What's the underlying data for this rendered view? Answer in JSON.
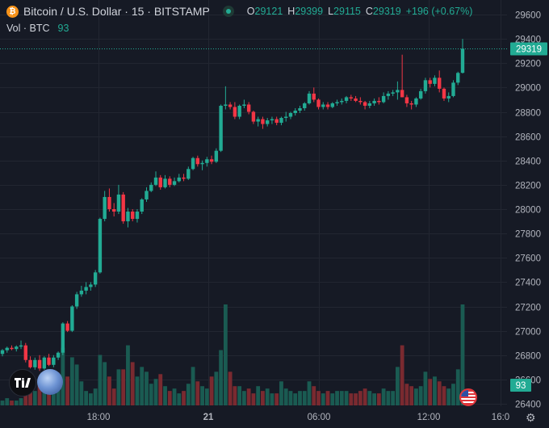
{
  "legend": {
    "symbol": "Bitcoin / U.S. Dollar · 15 · BITSTAMP",
    "btc_icon": "₿",
    "open_label": "O",
    "open": "29121",
    "high_label": "H",
    "high": "29399",
    "low_label": "L",
    "low": "29115",
    "close_label": "C",
    "close": "29319",
    "change": "+196 (+0.67%)"
  },
  "volume_legend": {
    "label": "Vol · BTC",
    "value": "93"
  },
  "icons": {
    "live": "live-indicator-icon",
    "logo": "tradingview-logo-icon",
    "moon": "full-moon-icon",
    "flag": "us-flag-event-icon",
    "settings": "gear-icon"
  },
  "colors": {
    "up": "#22ab94",
    "down": "#f23645",
    "up_volume": "#1a5b52",
    "down_volume": "#7a2a30",
    "background": "#161a25",
    "grid": "#222631",
    "last_price": "#22ab94"
  },
  "chart_data": {
    "type": "candlestick",
    "title": "Bitcoin / U.S. Dollar · 15 · BITSTAMP",
    "y_axis": {
      "ticks": [
        26400,
        26600,
        26800,
        27000,
        27200,
        27400,
        27600,
        27800,
        28000,
        28200,
        28400,
        28600,
        28800,
        29000,
        29200,
        29400,
        29600
      ],
      "range": [
        26380,
        29700
      ]
    },
    "x_axis": {
      "ticks": [
        "18:00",
        "21",
        "06:00",
        "12:00",
        "16:0"
      ]
    },
    "last_price": 29319,
    "last_volume": 93,
    "candles": [
      [
        26810,
        26850,
        26790,
        26840,
        2
      ],
      [
        26840,
        26870,
        26820,
        26860,
        3
      ],
      [
        26860,
        26880,
        26840,
        26850,
        2
      ],
      [
        26850,
        26880,
        26830,
        26870,
        2
      ],
      [
        26870,
        26920,
        26850,
        26880,
        3
      ],
      [
        26880,
        26900,
        26740,
        26760,
        7
      ],
      [
        26760,
        26790,
        26690,
        26700,
        11
      ],
      [
        26700,
        26780,
        26680,
        26760,
        6
      ],
      [
        26760,
        26800,
        26670,
        26690,
        9
      ],
      [
        26690,
        26790,
        26680,
        26780,
        13
      ],
      [
        26780,
        26810,
        26710,
        26720,
        7
      ],
      [
        26720,
        26800,
        26700,
        26780,
        6
      ],
      [
        26780,
        26830,
        26760,
        26820,
        9
      ],
      [
        26820,
        27070,
        26800,
        27060,
        24
      ],
      [
        27060,
        27080,
        26990,
        27000,
        12
      ],
      [
        27000,
        27210,
        26990,
        27200,
        20
      ],
      [
        27200,
        27320,
        27180,
        27300,
        17
      ],
      [
        27300,
        27370,
        27280,
        27330,
        10
      ],
      [
        27330,
        27400,
        27300,
        27360,
        6
      ],
      [
        27360,
        27400,
        27330,
        27380,
        5
      ],
      [
        27380,
        27500,
        27360,
        27480,
        7
      ],
      [
        27480,
        27930,
        27470,
        27920,
        21
      ],
      [
        27920,
        28150,
        27900,
        28100,
        18
      ],
      [
        28100,
        28170,
        27980,
        28000,
        12
      ],
      [
        28000,
        28050,
        27940,
        27980,
        7
      ],
      [
        27980,
        28200,
        27960,
        28120,
        15
      ],
      [
        28120,
        28140,
        27880,
        27900,
        15
      ],
      [
        27900,
        28010,
        27850,
        27980,
        25
      ],
      [
        27980,
        28000,
        27900,
        27920,
        18
      ],
      [
        27920,
        28000,
        27890,
        27980,
        12
      ],
      [
        27980,
        28090,
        27960,
        28080,
        16
      ],
      [
        28080,
        28180,
        28060,
        28150,
        14
      ],
      [
        28150,
        28220,
        28140,
        28200,
        9
      ],
      [
        28200,
        28310,
        28190,
        28260,
        11
      ],
      [
        28260,
        28280,
        28160,
        28180,
        13
      ],
      [
        28180,
        28280,
        28170,
        28250,
        8
      ],
      [
        28250,
        28270,
        28180,
        28200,
        6
      ],
      [
        28200,
        28260,
        28190,
        28230,
        7
      ],
      [
        28230,
        28290,
        28220,
        28260,
        5
      ],
      [
        28260,
        28290,
        28230,
        28250,
        6
      ],
      [
        28250,
        28350,
        28240,
        28330,
        9
      ],
      [
        28330,
        28430,
        28320,
        28420,
        16
      ],
      [
        28420,
        28440,
        28350,
        28370,
        10
      ],
      [
        28370,
        28400,
        28320,
        28380,
        8
      ],
      [
        28380,
        28430,
        28350,
        28410,
        7
      ],
      [
        28410,
        28440,
        28370,
        28390,
        12
      ],
      [
        28390,
        28500,
        28380,
        28480,
        14
      ],
      [
        28480,
        28860,
        28470,
        28850,
        23
      ],
      [
        28850,
        29010,
        28820,
        28860,
        42
      ],
      [
        28860,
        28880,
        28820,
        28840,
        14
      ],
      [
        28840,
        28880,
        28740,
        28760,
        8
      ],
      [
        28760,
        28860,
        28740,
        28850,
        8
      ],
      [
        28850,
        28900,
        28830,
        28860,
        6
      ],
      [
        28860,
        28880,
        28780,
        28800,
        7
      ],
      [
        28800,
        28810,
        28700,
        28720,
        5
      ],
      [
        28720,
        28760,
        28680,
        28740,
        8
      ],
      [
        28740,
        28760,
        28660,
        28700,
        6
      ],
      [
        28700,
        28750,
        28680,
        28730,
        7
      ],
      [
        28730,
        28760,
        28700,
        28740,
        5
      ],
      [
        28740,
        28760,
        28690,
        28710,
        5
      ],
      [
        28710,
        28760,
        28690,
        28750,
        10
      ],
      [
        28750,
        28800,
        28720,
        28760,
        7
      ],
      [
        28760,
        28800,
        28740,
        28790,
        6
      ],
      [
        28790,
        28830,
        28770,
        28810,
        5
      ],
      [
        28810,
        28850,
        28790,
        28830,
        6
      ],
      [
        28830,
        28880,
        28810,
        28870,
        6
      ],
      [
        28870,
        28970,
        28860,
        28950,
        10
      ],
      [
        28950,
        29000,
        28880,
        28900,
        8
      ],
      [
        28900,
        28910,
        28820,
        28840,
        6
      ],
      [
        28840,
        28880,
        28820,
        28860,
        5
      ],
      [
        28860,
        28880,
        28820,
        28840,
        6
      ],
      [
        28840,
        28880,
        28830,
        28870,
        5
      ],
      [
        28870,
        28900,
        28850,
        28880,
        6
      ],
      [
        28880,
        28910,
        28860,
        28890,
        6
      ],
      [
        28890,
        28930,
        28870,
        28920,
        6
      ],
      [
        28920,
        28940,
        28890,
        28910,
        5
      ],
      [
        28910,
        28930,
        28880,
        28890,
        5
      ],
      [
        28890,
        28920,
        28860,
        28880,
        6
      ],
      [
        28880,
        28890,
        28820,
        28850,
        7
      ],
      [
        28850,
        28890,
        28830,
        28870,
        6
      ],
      [
        28870,
        28910,
        28850,
        28890,
        5
      ],
      [
        28890,
        28920,
        28860,
        28880,
        5
      ],
      [
        28880,
        28960,
        28870,
        28930,
        7
      ],
      [
        28930,
        28970,
        28900,
        28950,
        6
      ],
      [
        28950,
        28980,
        28930,
        28960,
        6
      ],
      [
        28960,
        29050,
        28900,
        28980,
        16
      ],
      [
        28980,
        29270,
        28920,
        28920,
        25
      ],
      [
        28920,
        28940,
        28840,
        28870,
        9
      ],
      [
        28870,
        28890,
        28820,
        28860,
        8
      ],
      [
        28860,
        28920,
        28840,
        28910,
        7
      ],
      [
        28910,
        28990,
        28900,
        28970,
        8
      ],
      [
        28970,
        29080,
        28950,
        29060,
        14
      ],
      [
        29060,
        29080,
        29000,
        29030,
        11
      ],
      [
        29030,
        29100,
        29010,
        29080,
        12
      ],
      [
        29080,
        29140,
        28960,
        28990,
        10
      ],
      [
        28990,
        29000,
        28890,
        28910,
        8
      ],
      [
        28910,
        28960,
        28880,
        28930,
        7
      ],
      [
        28930,
        29060,
        28920,
        29040,
        9
      ],
      [
        29040,
        29130,
        29020,
        29120,
        15
      ],
      [
        29121,
        29399,
        29115,
        29319,
        93
      ]
    ]
  }
}
